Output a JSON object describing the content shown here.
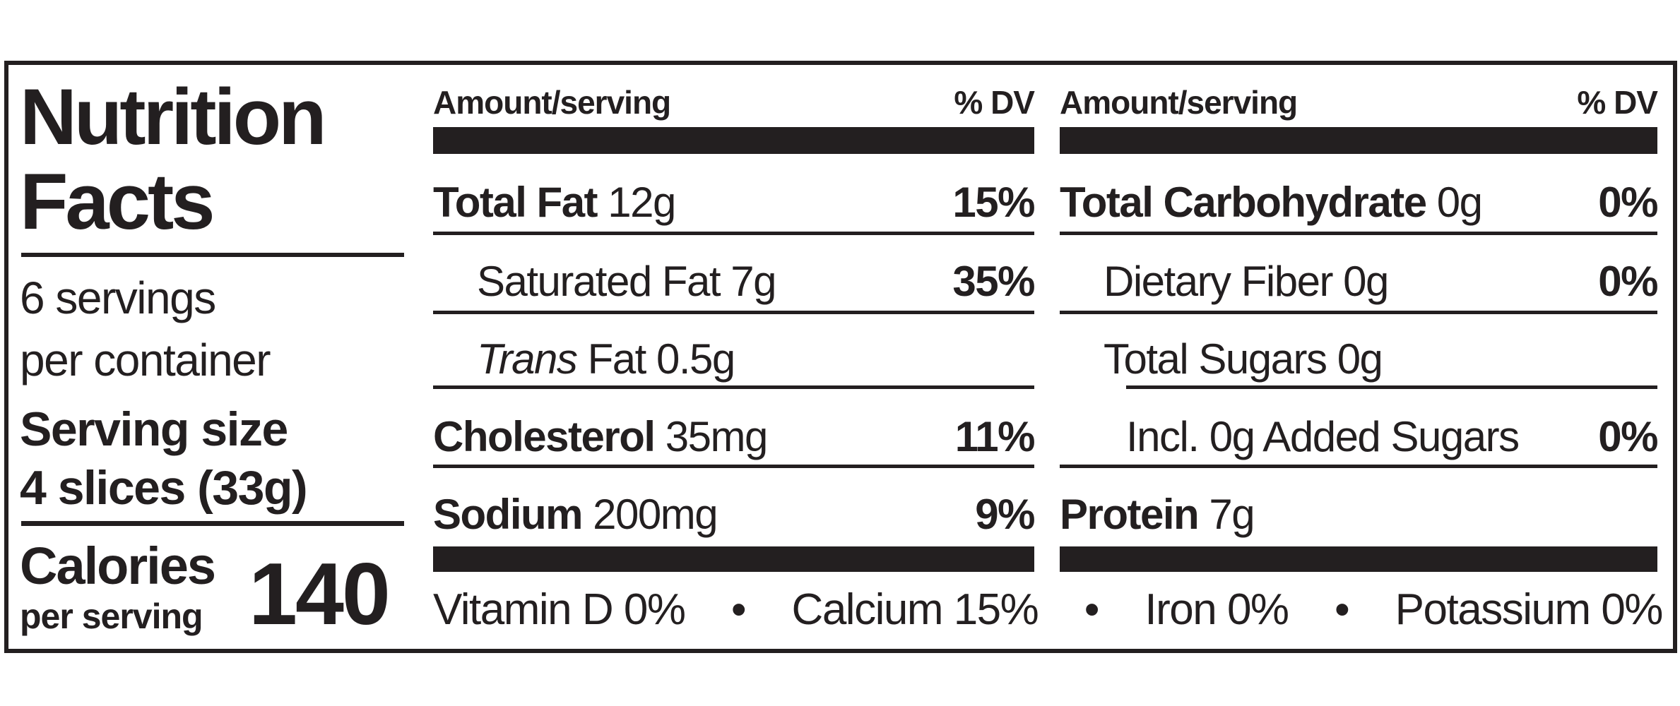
{
  "title_lines": [
    "Nutrition",
    "Facts"
  ],
  "servings_lines": [
    "6 servings",
    "per container"
  ],
  "serving_size_label": "Serving size",
  "serving_size": "4 slices (33g)",
  "calories_label": "Calories",
  "calories_sub": "per serving",
  "calories": 140,
  "columns": [
    {
      "header_amount": "Amount/serving",
      "header_dv": "% DV",
      "rows": [
        {
          "name": "Total Fat",
          "amount": "12g",
          "dv": "15%",
          "bold": true,
          "indent": 0
        },
        {
          "name": "Saturated Fat",
          "amount": "7g",
          "dv": "35%",
          "bold": false,
          "indent": 1
        },
        {
          "italic": "Trans",
          "name": "Fat",
          "amount": "0.5g",
          "bold": false,
          "indent": 1
        },
        {
          "name": "Cholesterol",
          "amount": "35mg",
          "dv": "11%",
          "bold": true,
          "indent": 0
        },
        {
          "name": "Sodium",
          "amount": "200mg",
          "dv": "9%",
          "bold": true,
          "indent": 0
        }
      ]
    },
    {
      "header_amount": "Amount/serving",
      "header_dv": "% DV",
      "rows": [
        {
          "name": "Total Carbohydrate",
          "amount": "0g",
          "dv": "0%",
          "bold": true,
          "indent": 0
        },
        {
          "name": "Dietary Fiber",
          "amount": "0g",
          "dv": "0%",
          "bold": false,
          "indent": 1
        },
        {
          "name": "Total Sugars",
          "amount": "0g",
          "bold": false,
          "indent": 1
        },
        {
          "name": "Incl. 0g Added Sugars",
          "dv": "0%",
          "bold": false,
          "indent": 2
        },
        {
          "name": "Protein",
          "amount": "7g",
          "bold": true,
          "indent": 0
        }
      ]
    }
  ],
  "vitamins": [
    "Vitamin D 0%",
    "Calcium 15%",
    "Iron 0%",
    "Potassium 0%"
  ]
}
